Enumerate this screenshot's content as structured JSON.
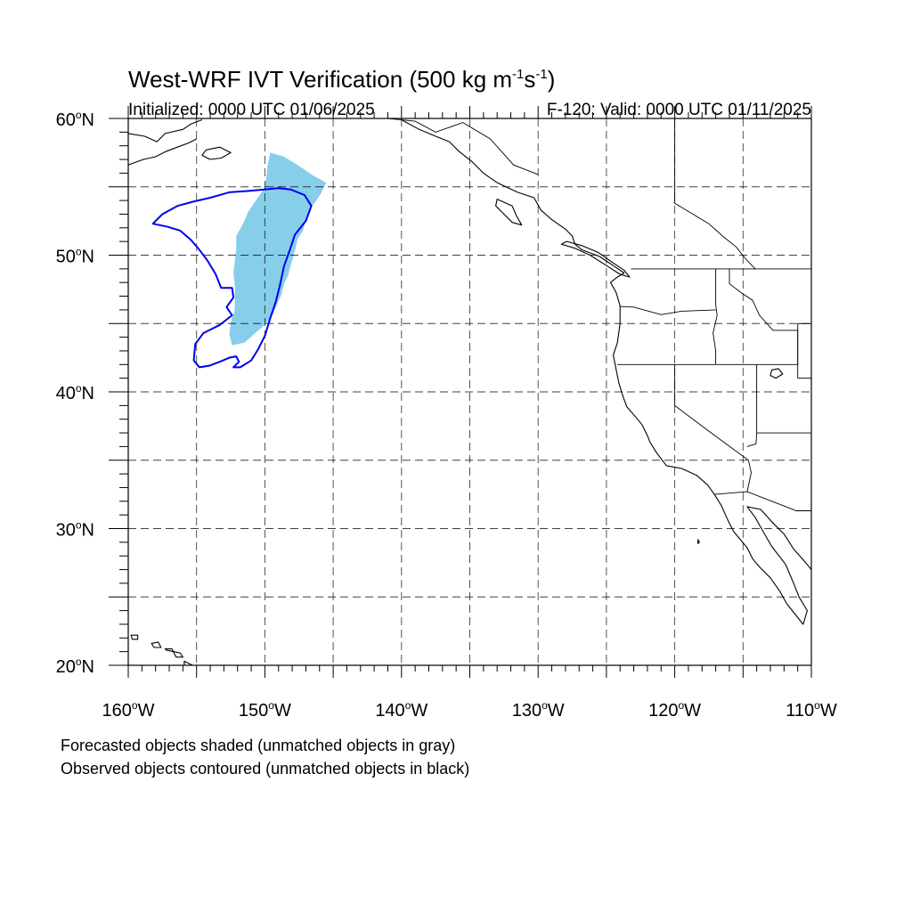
{
  "title": {
    "main": "West-WRF IVT Verification (500 kg m",
    "sup1": "-1",
    "mid": "s",
    "sup2": "-1",
    "close": ")"
  },
  "subtitle_left": "Initialized: 0000 UTC 01/06/2025",
  "subtitle_right": "F-120: Valid: 0000 UTC 01/11/2025",
  "axes": {
    "lon_range": [
      -160,
      -110
    ],
    "lat_range": [
      20,
      60
    ],
    "lon_ticks": [
      {
        "value": -160,
        "num": "160",
        "hemi": "W"
      },
      {
        "value": -150,
        "num": "150",
        "hemi": "W"
      },
      {
        "value": -140,
        "num": "140",
        "hemi": "W"
      },
      {
        "value": -130,
        "num": "130",
        "hemi": "W"
      },
      {
        "value": -120,
        "num": "120",
        "hemi": "W"
      },
      {
        "value": -110,
        "num": "110",
        "hemi": "W"
      }
    ],
    "lat_ticks": [
      {
        "value": 60,
        "num": "60",
        "hemi": "N"
      },
      {
        "value": 50,
        "num": "50",
        "hemi": "N"
      },
      {
        "value": 40,
        "num": "40",
        "hemi": "N"
      },
      {
        "value": 30,
        "num": "30",
        "hemi": "N"
      },
      {
        "value": 20,
        "num": "20",
        "hemi": "N"
      }
    ],
    "grid_lons": [
      -155,
      -150,
      -145,
      -140,
      -135,
      -130,
      -125,
      -120,
      -115
    ],
    "grid_lats": [
      55,
      50,
      45,
      40,
      35,
      30,
      25
    ],
    "grid": true
  },
  "forecast_object": {
    "color": "#87CEEB",
    "lonlat": [
      [
        -149.6,
        57.5
      ],
      [
        -148.6,
        57.2
      ],
      [
        -147.6,
        56.6
      ],
      [
        -146.6,
        55.9
      ],
      [
        -145.5,
        55.3
      ],
      [
        -145.9,
        54.5
      ],
      [
        -146.3,
        53.9
      ],
      [
        -146.7,
        53.4
      ],
      [
        -147.0,
        52.7
      ],
      [
        -147.2,
        51.8
      ],
      [
        -147.6,
        51.2
      ],
      [
        -147.8,
        50.3
      ],
      [
        -148.1,
        49.3
      ],
      [
        -148.3,
        48.5
      ],
      [
        -148.6,
        47.9
      ],
      [
        -148.8,
        47.1
      ],
      [
        -149.1,
        46.4
      ],
      [
        -149.5,
        45.5
      ],
      [
        -150.0,
        44.9
      ],
      [
        -150.7,
        44.3
      ],
      [
        -151.5,
        43.6
      ],
      [
        -152.4,
        43.4
      ],
      [
        -152.6,
        44.2
      ],
      [
        -152.5,
        45.1
      ],
      [
        -152.2,
        46.0
      ],
      [
        -152.2,
        46.9
      ],
      [
        -152.2,
        47.8
      ],
      [
        -152.3,
        48.7
      ],
      [
        -152.2,
        49.6
      ],
      [
        -152.1,
        50.5
      ],
      [
        -152.1,
        51.4
      ],
      [
        -151.6,
        52.3
      ],
      [
        -151.2,
        53.2
      ],
      [
        -150.6,
        54.1
      ],
      [
        -150.1,
        54.8
      ],
      [
        -149.9,
        55.6
      ],
      [
        -149.8,
        56.6
      ]
    ]
  },
  "observed_object": {
    "color": "#0000EE",
    "lonlat": [
      [
        -150.0,
        54.8
      ],
      [
        -151.2,
        54.7
      ],
      [
        -152.6,
        54.6
      ],
      [
        -154.0,
        54.2
      ],
      [
        -155.3,
        53.9
      ],
      [
        -156.4,
        53.6
      ],
      [
        -157.5,
        53.0
      ],
      [
        -158.2,
        52.3
      ],
      [
        -157.2,
        52.1
      ],
      [
        -156.2,
        51.8
      ],
      [
        -155.4,
        51.1
      ],
      [
        -154.8,
        50.4
      ],
      [
        -154.2,
        49.6
      ],
      [
        -153.6,
        48.6
      ],
      [
        -153.2,
        47.6
      ],
      [
        -152.4,
        47.6
      ],
      [
        -152.3,
        46.9
      ],
      [
        -152.8,
        46.2
      ],
      [
        -152.4,
        45.6
      ],
      [
        -153.3,
        44.9
      ],
      [
        -154.5,
        44.3
      ],
      [
        -155.1,
        43.5
      ],
      [
        -155.2,
        42.3
      ],
      [
        -154.8,
        41.8
      ],
      [
        -154.1,
        41.9
      ],
      [
        -153.3,
        42.2
      ],
      [
        -152.6,
        42.5
      ],
      [
        -152.1,
        42.6
      ],
      [
        -151.9,
        42.2
      ],
      [
        -152.3,
        41.8
      ],
      [
        -151.8,
        41.8
      ],
      [
        -151.0,
        42.3
      ],
      [
        -150.5,
        43.1
      ],
      [
        -150.0,
        44.1
      ],
      [
        -149.6,
        45.4
      ],
      [
        -149.2,
        46.6
      ],
      [
        -148.9,
        47.8
      ],
      [
        -148.6,
        49.2
      ],
      [
        -148.2,
        50.3
      ],
      [
        -147.8,
        51.5
      ],
      [
        -147.0,
        52.5
      ],
      [
        -146.6,
        53.6
      ],
      [
        -147.1,
        54.4
      ],
      [
        -148.1,
        54.8
      ],
      [
        -149.0,
        54.9
      ]
    ]
  },
  "coastlines": [
    {
      "name": "north-america-west-coast",
      "lonlat": [
        [
          -140.0,
          59.9
        ],
        [
          -138.7,
          59.2
        ],
        [
          -137.5,
          58.7
        ],
        [
          -136.5,
          58.3
        ],
        [
          -135.8,
          57.6
        ],
        [
          -134.8,
          56.8
        ],
        [
          -134.0,
          56.0
        ],
        [
          -133.0,
          55.3
        ],
        [
          -131.5,
          54.6
        ],
        [
          -130.3,
          54.2
        ],
        [
          -129.8,
          53.3
        ],
        [
          -129.0,
          52.6
        ],
        [
          -128.0,
          51.9
        ],
        [
          -127.5,
          51.4
        ],
        [
          -127.3,
          50.8
        ],
        [
          -126.8,
          50.4
        ],
        [
          -125.5,
          49.9
        ],
        [
          -124.6,
          49.3
        ],
        [
          -123.7,
          48.7
        ],
        [
          -124.2,
          48.4
        ],
        [
          -124.7,
          48.0
        ],
        [
          -124.3,
          47.3
        ],
        [
          -124.0,
          46.3
        ],
        [
          -124.0,
          45.0
        ],
        [
          -124.2,
          43.6
        ],
        [
          -124.5,
          42.7
        ],
        [
          -124.3,
          41.7
        ],
        [
          -124.1,
          40.7
        ],
        [
          -123.8,
          39.7
        ],
        [
          -123.5,
          38.9
        ],
        [
          -122.8,
          38.1
        ],
        [
          -122.4,
          37.6
        ],
        [
          -122.0,
          36.8
        ],
        [
          -121.8,
          36.3
        ],
        [
          -121.3,
          35.5
        ],
        [
          -120.6,
          34.6
        ],
        [
          -119.5,
          34.4
        ],
        [
          -118.4,
          33.9
        ],
        [
          -117.6,
          33.2
        ],
        [
          -117.1,
          32.5
        ],
        [
          -116.6,
          31.7
        ],
        [
          -116.1,
          30.6
        ],
        [
          -115.7,
          29.8
        ],
        [
          -114.7,
          28.6
        ],
        [
          -114.3,
          27.8
        ],
        [
          -113.8,
          27.2
        ],
        [
          -113.0,
          26.4
        ],
        [
          -112.3,
          25.4
        ],
        [
          -111.8,
          24.5
        ],
        [
          -110.6,
          23.0
        ],
        [
          -110.3,
          24.0
        ],
        [
          -110.9,
          25.0
        ],
        [
          -111.3,
          26.0
        ],
        [
          -111.9,
          27.4
        ],
        [
          -112.9,
          28.7
        ],
        [
          -113.6,
          29.9
        ],
        [
          -114.1,
          30.8
        ],
        [
          -114.7,
          31.6
        ],
        [
          -113.7,
          31.4
        ],
        [
          -112.9,
          30.5
        ],
        [
          -112.0,
          29.6
        ],
        [
          -111.3,
          28.5
        ],
        [
          -110.5,
          27.6
        ],
        [
          -110.0,
          27.0
        ]
      ]
    },
    {
      "name": "gulf-of-alaska-coast",
      "lonlat": [
        [
          -160.0,
          58.9
        ],
        [
          -158.8,
          58.7
        ],
        [
          -157.9,
          58.3
        ],
        [
          -157.3,
          58.9
        ],
        [
          -156.0,
          59.2
        ],
        [
          -155.4,
          59.6
        ],
        [
          -154.6,
          59.9
        ]
      ]
    },
    {
      "name": "alaska-peninsula",
      "lonlat": [
        [
          -160.0,
          56.6
        ],
        [
          -158.9,
          57.0
        ],
        [
          -158.0,
          57.2
        ],
        [
          -157.2,
          57.6
        ],
        [
          -156.4,
          57.9
        ],
        [
          -155.6,
          58.2
        ],
        [
          -155.0,
          58.5
        ]
      ]
    },
    {
      "name": "kodiak-island",
      "closed": true,
      "lonlat": [
        [
          -154.3,
          57.7
        ],
        [
          -153.3,
          57.9
        ],
        [
          -152.5,
          57.5
        ],
        [
          -153.2,
          57.1
        ],
        [
          -154.0,
          57.0
        ],
        [
          -154.6,
          57.3
        ]
      ]
    },
    {
      "name": "haida-gwaii",
      "closed": true,
      "lonlat": [
        [
          -133.0,
          54.1
        ],
        [
          -131.9,
          53.6
        ],
        [
          -131.6,
          52.9
        ],
        [
          -131.2,
          52.2
        ],
        [
          -131.9,
          52.4
        ],
        [
          -132.5,
          53.0
        ],
        [
          -133.1,
          53.6
        ]
      ]
    },
    {
      "name": "vancouver-island",
      "closed": true,
      "lonlat": [
        [
          -128.3,
          50.8
        ],
        [
          -127.3,
          50.5
        ],
        [
          -126.2,
          50.0
        ],
        [
          -125.1,
          49.3
        ],
        [
          -124.0,
          48.6
        ],
        [
          -123.3,
          48.4
        ],
        [
          -123.7,
          48.9
        ],
        [
          -124.6,
          49.5
        ],
        [
          -125.6,
          50.2
        ],
        [
          -126.8,
          50.7
        ],
        [
          -127.9,
          51.0
        ]
      ]
    },
    {
      "name": "hawaii-main",
      "closed": true,
      "lonlat": [
        [
          -155.9,
          20.3
        ],
        [
          -155.1,
          19.9
        ],
        [
          -154.8,
          19.5
        ],
        [
          -155.6,
          18.9
        ],
        [
          -155.9,
          19.4
        ]
      ]
    },
    {
      "name": "maui",
      "closed": true,
      "lonlat": [
        [
          -156.7,
          21.0
        ],
        [
          -156.2,
          20.9
        ],
        [
          -156.0,
          20.6
        ],
        [
          -156.5,
          20.6
        ]
      ]
    },
    {
      "name": "molokai",
      "closed": true,
      "lonlat": [
        [
          -157.3,
          21.2
        ],
        [
          -156.8,
          21.2
        ],
        [
          -156.7,
          21.0
        ],
        [
          -157.2,
          21.1
        ]
      ]
    },
    {
      "name": "oahu",
      "closed": true,
      "lonlat": [
        [
          -158.3,
          21.6
        ],
        [
          -157.8,
          21.7
        ],
        [
          -157.6,
          21.3
        ],
        [
          -158.1,
          21.3
        ]
      ]
    },
    {
      "name": "kauai",
      "closed": true,
      "lonlat": [
        [
          -159.8,
          22.2
        ],
        [
          -159.3,
          22.2
        ],
        [
          -159.3,
          21.9
        ],
        [
          -159.7,
          21.9
        ]
      ]
    },
    {
      "name": "great-salt-lake",
      "closed": true,
      "lonlat": [
        [
          -112.9,
          41.6
        ],
        [
          -112.4,
          41.7
        ],
        [
          -112.1,
          41.3
        ],
        [
          -112.6,
          41.0
        ],
        [
          -113.0,
          41.2
        ]
      ]
    },
    {
      "name": "guadalupe-island",
      "closed": true,
      "lonlat": [
        [
          -118.3,
          29.2
        ],
        [
          -118.2,
          29.0
        ],
        [
          -118.3,
          28.9
        ]
      ]
    }
  ],
  "boundaries": [
    {
      "name": "canada-us-border",
      "lonlat": [
        [
          -123.2,
          49.0
        ],
        [
          -110.0,
          49.0
        ]
      ]
    },
    {
      "name": "alaska-canada-border",
      "lonlat": [
        [
          -141.0,
          60.0
        ],
        [
          -141.0,
          60.0
        ],
        [
          -139.0,
          59.8
        ],
        [
          -137.5,
          59.0
        ],
        [
          -135.5,
          59.7
        ],
        [
          -133.5,
          58.5
        ],
        [
          -131.8,
          56.6
        ],
        [
          -130.0,
          55.9
        ]
      ]
    },
    {
      "name": "bc-alberta-border",
      "lonlat": [
        [
          -120.0,
          60.0
        ],
        [
          -120.0,
          53.8
        ],
        [
          -119.0,
          53.2
        ],
        [
          -117.5,
          52.3
        ],
        [
          -116.5,
          51.4
        ],
        [
          -115.5,
          50.6
        ],
        [
          -114.7,
          49.6
        ],
        [
          -114.1,
          49.0
        ]
      ]
    },
    {
      "name": "washington-oregon-border",
      "lonlat": [
        [
          -124.0,
          46.25
        ],
        [
          -123.0,
          46.2
        ],
        [
          -121.0,
          45.65
        ],
        [
          -119.5,
          45.9
        ],
        [
          -117.0,
          46.0
        ]
      ]
    },
    {
      "name": "idaho-west-border",
      "lonlat": [
        [
          -117.0,
          49.0
        ],
        [
          -117.0,
          46.4
        ],
        [
          -116.9,
          45.6
        ],
        [
          -117.2,
          44.3
        ],
        [
          -117.0,
          43.0
        ],
        [
          -117.0,
          42.0
        ]
      ]
    },
    {
      "name": "idaho-montana-border",
      "lonlat": [
        [
          -116.0,
          49.0
        ],
        [
          -116.0,
          47.9
        ],
        [
          -115.2,
          47.3
        ],
        [
          -114.3,
          46.7
        ],
        [
          -113.8,
          45.6
        ],
        [
          -112.8,
          44.5
        ],
        [
          -111.0,
          44.5
        ],
        [
          -111.0,
          42.0
        ]
      ]
    },
    {
      "name": "oregon-south-border",
      "lonlat": [
        [
          -124.2,
          42.0
        ],
        [
          -111.0,
          42.0
        ]
      ]
    },
    {
      "name": "wyoming-west-border",
      "lonlat": [
        [
          -111.0,
          45.0
        ],
        [
          -111.0,
          41.0
        ]
      ]
    },
    {
      "name": "montana-wyoming-border",
      "lonlat": [
        [
          -111.0,
          45.0
        ],
        [
          -110.0,
          45.0
        ]
      ]
    },
    {
      "name": "wyoming-colorado-border",
      "lonlat": [
        [
          -111.0,
          41.0
        ],
        [
          -110.0,
          41.0
        ]
      ]
    },
    {
      "name": "california-nevada-border",
      "lonlat": [
        [
          -120.0,
          42.0
        ],
        [
          -120.0,
          39.0
        ],
        [
          -117.6,
          37.2
        ],
        [
          -114.6,
          35.0
        ]
      ]
    },
    {
      "name": "nevada-utah-border",
      "lonlat": [
        [
          -114.0,
          42.0
        ],
        [
          -114.0,
          37.0
        ],
        [
          -114.05,
          36.2
        ],
        [
          -114.7,
          36.0
        ]
      ]
    },
    {
      "name": "utah-arizona-border",
      "lonlat": [
        [
          -114.0,
          37.0
        ],
        [
          -110.0,
          37.0
        ]
      ]
    },
    {
      "name": "arizona-california-border",
      "lonlat": [
        [
          -114.6,
          35.0
        ],
        [
          -114.4,
          34.1
        ],
        [
          -114.7,
          32.7
        ]
      ]
    },
    {
      "name": "us-mexico-border",
      "lonlat": [
        [
          -117.1,
          32.5
        ],
        [
          -114.7,
          32.7
        ],
        [
          -111.1,
          31.3
        ],
        [
          -110.0,
          31.3
        ]
      ]
    }
  ],
  "legend_notes": [
    "Forecasted objects shaded (unmatched objects in gray)",
    "Observed objects contoured (unmatched objects in black)"
  ]
}
